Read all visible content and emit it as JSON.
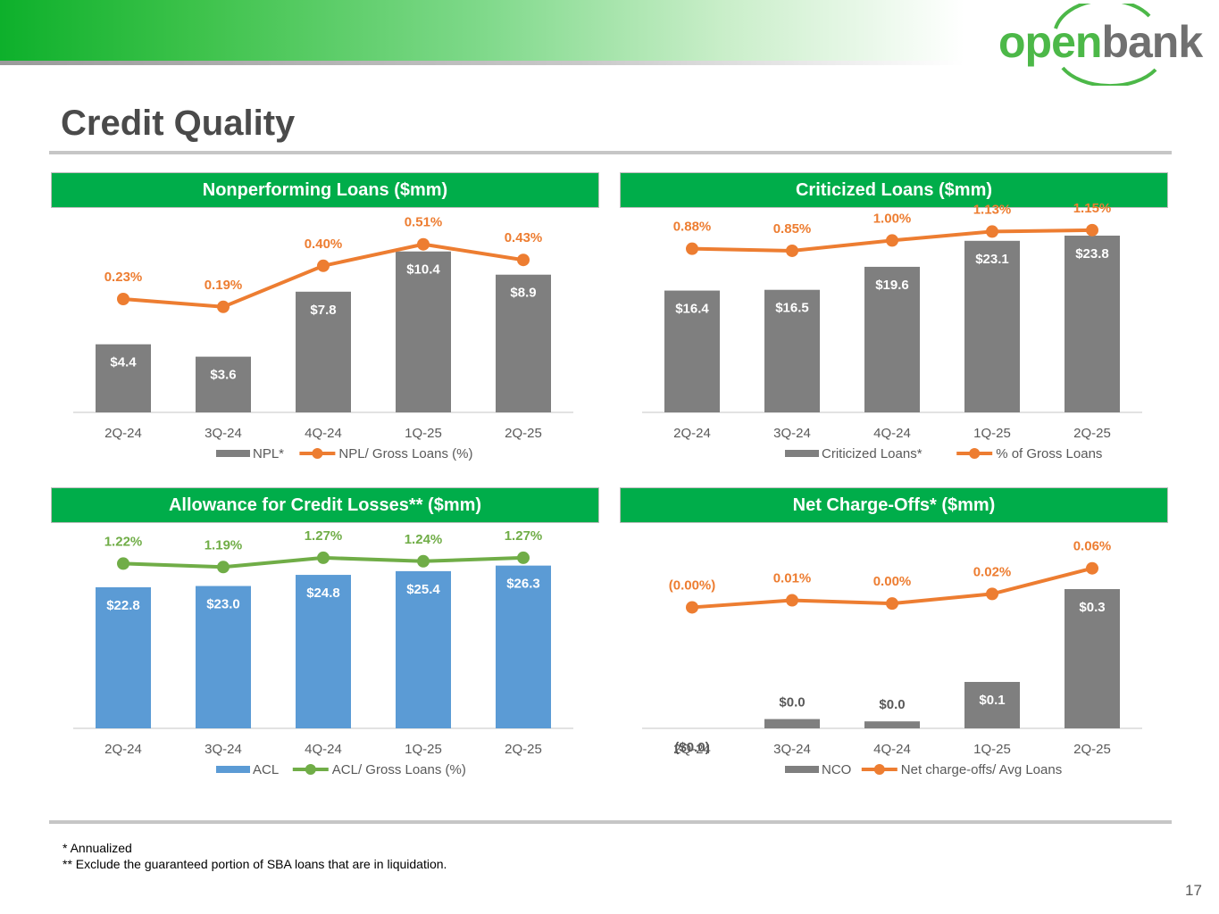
{
  "title": "Credit Quality",
  "logo": {
    "open": "open",
    "bank": "bank"
  },
  "page_number": "17",
  "footnotes": {
    "f1": "* Annualized",
    "f2": "** Exclude the guaranteed portion of SBA loans that are in liquidation."
  },
  "colors": {
    "gray_bar": "#7f7f7f",
    "orange_line": "#ed7d31",
    "blue_bar": "#5b9bd5",
    "green_line": "#70ad47",
    "header_green": "#00ad4a"
  },
  "chart_data": [
    {
      "type": "bar+line",
      "title": "Nonperforming Loans ($mm)",
      "categories": [
        "2Q-24",
        "3Q-24",
        "4Q-24",
        "1Q-25",
        "2Q-25"
      ],
      "bar_series": {
        "name": "NPL*",
        "values": [
          4.4,
          3.6,
          7.8,
          10.4,
          8.9
        ],
        "labels": [
          "$4.4",
          "$3.6",
          "$7.8",
          "$10.4",
          "$8.9"
        ],
        "ylim": [
          0,
          12
        ]
      },
      "line_series": {
        "name": "NPL/ Gross Loans (%)",
        "values": [
          0.23,
          0.19,
          0.4,
          0.51,
          0.43
        ],
        "labels": [
          "0.23%",
          "0.19%",
          "0.40%",
          "0.51%",
          "0.43%"
        ],
        "ylim": [
          -0.35,
          0.6
        ]
      },
      "bar_color": "#7f7f7f",
      "line_color": "#ed7d31"
    },
    {
      "type": "bar+line",
      "title": "Criticized Loans ($mm)",
      "categories": [
        "2Q-24",
        "3Q-24",
        "4Q-24",
        "1Q-25",
        "2Q-25"
      ],
      "bar_series": {
        "name": "Criticized Loans*",
        "values": [
          16.4,
          16.5,
          19.6,
          23.1,
          23.8
        ],
        "labels": [
          "$16.4",
          "$16.5",
          "$19.6",
          "$23.1",
          "$23.8"
        ],
        "ylim": [
          0,
          25
        ]
      },
      "line_series": {
        "name": "% of Gross Loans",
        "values": [
          0.88,
          0.85,
          1.0,
          1.13,
          1.15
        ],
        "labels": [
          "0.88%",
          "0.85%",
          "1.00%",
          "1.13%",
          "1.15%"
        ],
        "ylim": [
          -1.5,
          1.2
        ]
      },
      "bar_color": "#7f7f7f",
      "line_color": "#ed7d31"
    },
    {
      "type": "bar+line",
      "title": "Allowance for Credit Losses** ($mm)",
      "categories": [
        "2Q-24",
        "3Q-24",
        "4Q-24",
        "1Q-25",
        "2Q-25"
      ],
      "bar_series": {
        "name": "ACL",
        "values": [
          22.8,
          23.0,
          24.8,
          25.4,
          26.3
        ],
        "labels": [
          "$22.8",
          "$23.0",
          "$24.8",
          "$25.4",
          "$26.3"
        ],
        "ylim": [
          0,
          30
        ]
      },
      "line_series": {
        "name": "ACL/ Gross Loans (%)",
        "values": [
          1.22,
          1.19,
          1.27,
          1.24,
          1.27
        ],
        "labels": [
          "1.22%",
          "1.19%",
          "1.27%",
          "1.24%",
          "1.27%"
        ],
        "ylim": [
          -0.2,
          1.4
        ]
      },
      "bar_color": "#5b9bd5",
      "line_color": "#70ad47"
    },
    {
      "type": "bar+line",
      "title": "Net Charge-Offs* ($mm)",
      "categories": [
        "2Q-24",
        "3Q-24",
        "4Q-24",
        "1Q-25",
        "2Q-25"
      ],
      "bar_series": {
        "name": "NCO",
        "values": [
          -0.0,
          0.02,
          0.015,
          0.1,
          0.3
        ],
        "labels": [
          "($0.0)",
          "$0.0",
          "$0.0",
          "$0.1",
          "$0.3"
        ],
        "ylim": [
          0,
          0.4
        ]
      },
      "line_series": {
        "name": "Net charge-offs/ Avg Loans",
        "values": [
          -0.001,
          0.01,
          0.005,
          0.02,
          0.06
        ],
        "labels": [
          "(0.00%)",
          "0.01%",
          "0.00%",
          "0.02%",
          "0.06%"
        ],
        "ylim": [
          -0.19,
          0.1
        ]
      },
      "bar_color": "#7f7f7f",
      "line_color": "#ed7d31"
    }
  ]
}
